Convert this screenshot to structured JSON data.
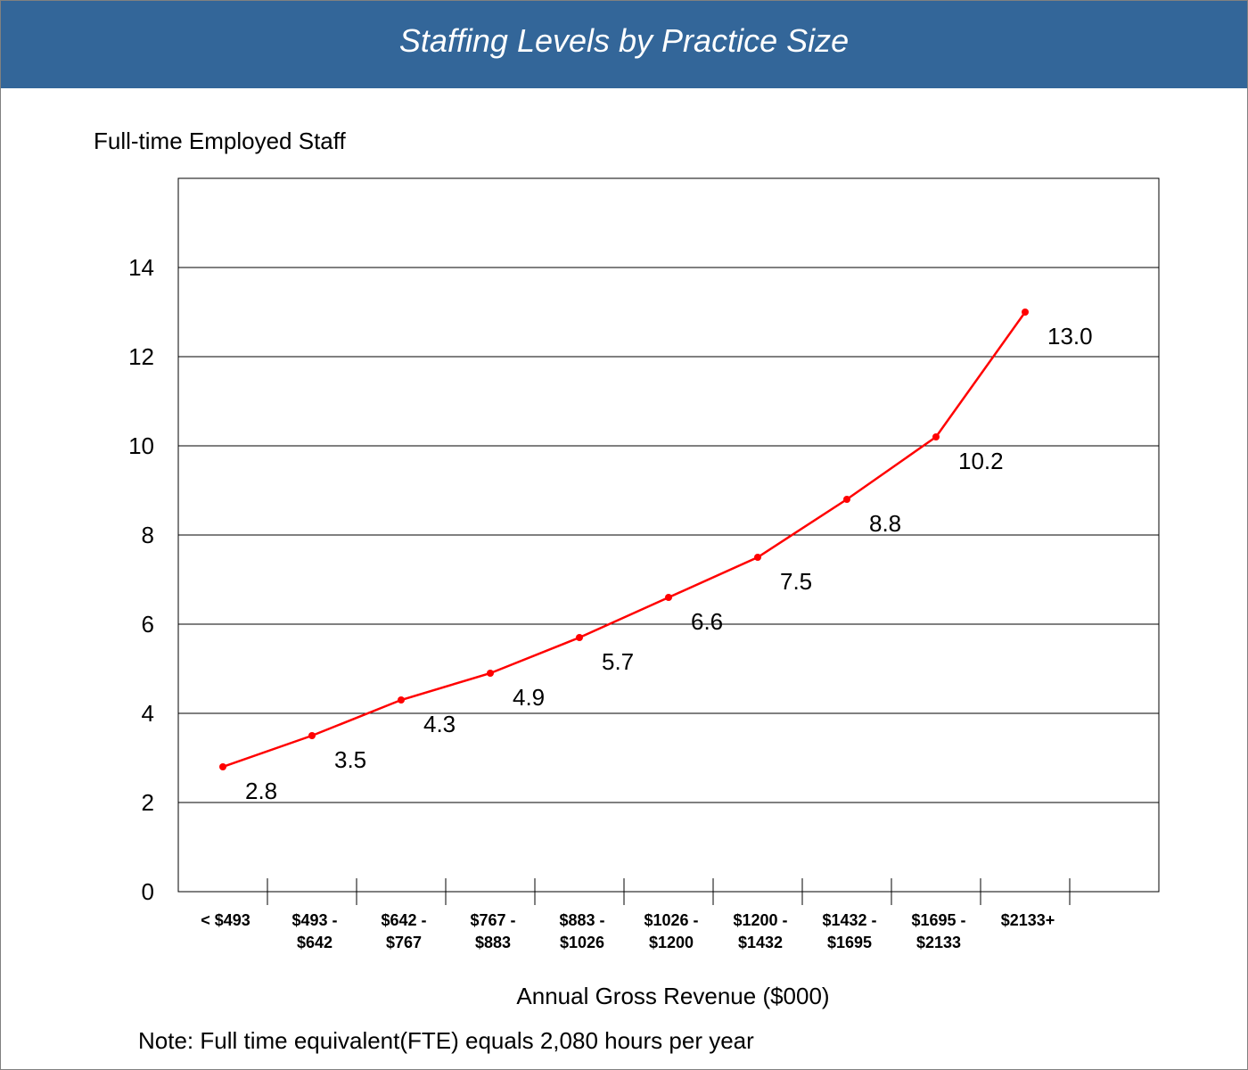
{
  "header": {
    "title": "Staffing Levels by Practice Size"
  },
  "chart_data": {
    "type": "line",
    "title": "Staffing Levels by Practice Size",
    "ylabel": "Full-time Employed Staff",
    "xlabel": "Annual Gross Revenue ($000)",
    "note": "Note: Full time equivalent(FTE) equals 2,080 hours per year",
    "ylim": [
      0,
      16
    ],
    "yticks": [
      "0",
      "2",
      "4",
      "6",
      "8",
      "10",
      "12",
      "14"
    ],
    "grid": true,
    "categories": [
      [
        "< $493"
      ],
      [
        "$493 -",
        "$642"
      ],
      [
        "$642 -",
        "$767"
      ],
      [
        "$767 -",
        "$883"
      ],
      [
        "$883 -",
        "$1026"
      ],
      [
        "$1026 -",
        "$1200"
      ],
      [
        "$1200 -",
        "$1432"
      ],
      [
        "$1432 -",
        "$1695"
      ],
      [
        "$1695 -",
        "$2133"
      ],
      [
        "$2133+"
      ]
    ],
    "values": [
      2.8,
      3.5,
      4.3,
      4.9,
      5.7,
      6.6,
      7.5,
      8.8,
      10.2,
      13.0
    ],
    "data_labels": [
      "2.8",
      "3.5",
      "4.3",
      "4.9",
      "5.7",
      "6.6",
      "7.5",
      "8.8",
      "10.2",
      "13.0"
    ],
    "line_color": "#ff0000",
    "header_color": "#336699"
  }
}
